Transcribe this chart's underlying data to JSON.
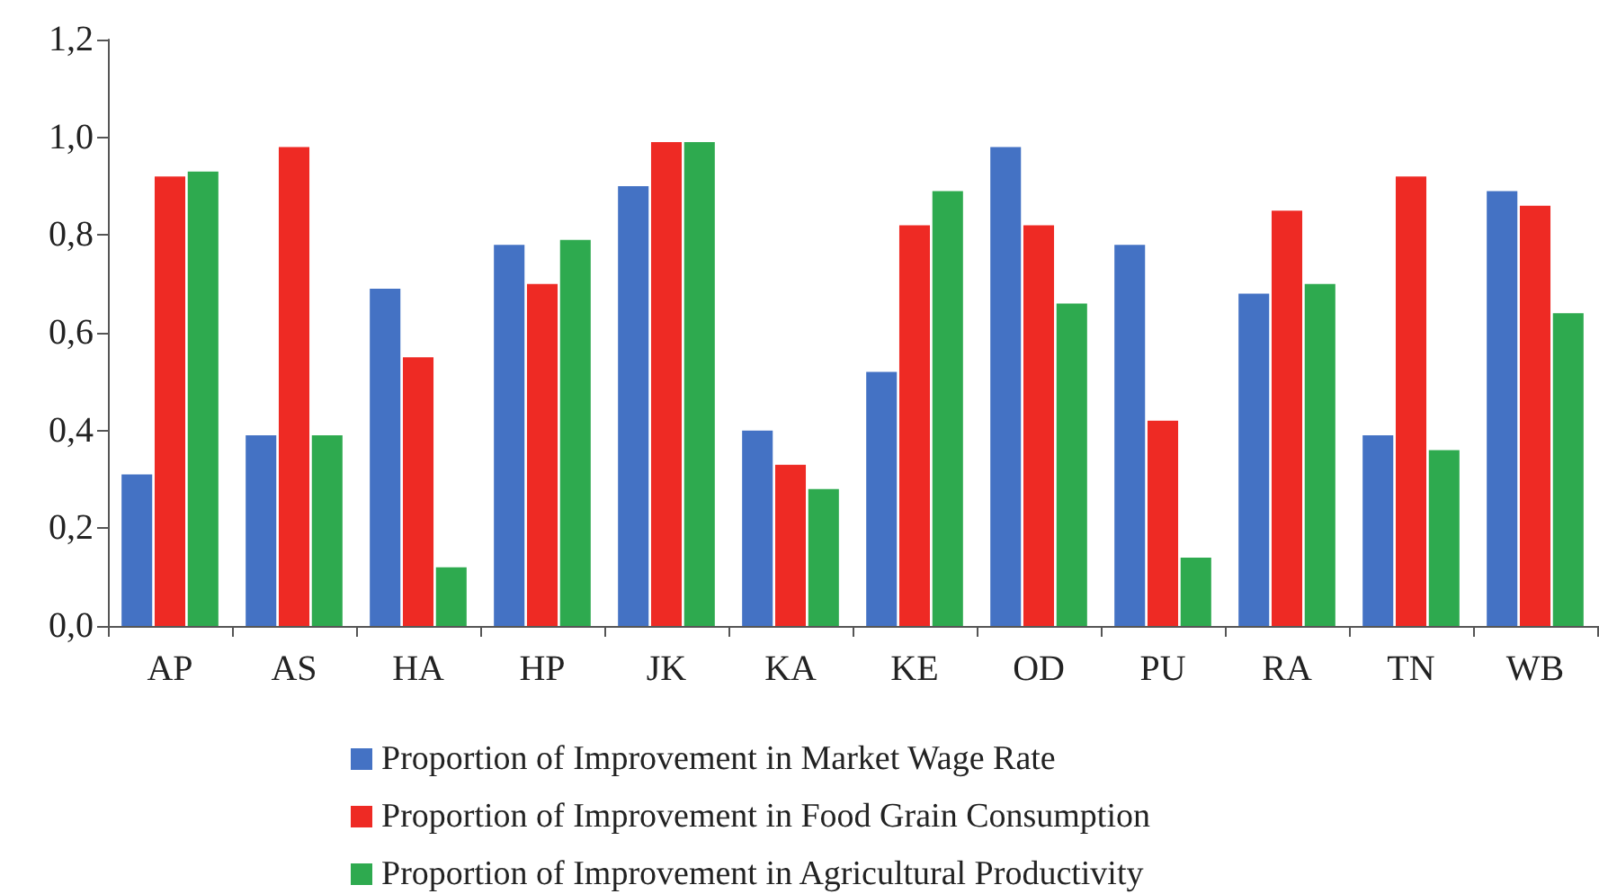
{
  "chart_data": {
    "type": "bar",
    "categories": [
      "AP",
      "AS",
      "HA",
      "HP",
      "JK",
      "KA",
      "KE",
      "OD",
      "PU",
      "RA",
      "TN",
      "WB"
    ],
    "series": [
      {
        "name": "Proportion of Improvement in Market Wage Rate",
        "color": "#4472c4",
        "values": [
          0.31,
          0.39,
          0.69,
          0.78,
          0.9,
          0.4,
          0.52,
          0.98,
          0.78,
          0.68,
          0.39,
          0.89
        ]
      },
      {
        "name": "Proportion of Improvement in Food Grain Consumption",
        "color": "#ee2a24",
        "values": [
          0.92,
          0.98,
          0.55,
          0.7,
          0.99,
          0.33,
          0.82,
          0.82,
          0.42,
          0.85,
          0.92,
          0.86
        ]
      },
      {
        "name": "Proportion of Improvement in Agricultural Productivity",
        "color": "#2eaa4f",
        "values": [
          0.93,
          0.39,
          0.12,
          0.79,
          0.99,
          0.28,
          0.89,
          0.66,
          0.14,
          0.7,
          0.36,
          0.64
        ]
      }
    ],
    "ylim": [
      0,
      1.2
    ],
    "yticks": [
      {
        "value": 0,
        "label": "0,0"
      },
      {
        "value": 0.2,
        "label": "0,2"
      },
      {
        "value": 0.4,
        "label": "0,4"
      },
      {
        "value": 0.6,
        "label": "0,6"
      },
      {
        "value": 0.8,
        "label": "0,8"
      },
      {
        "value": 1.0,
        "label": "1,0"
      },
      {
        "value": 1.2,
        "label": "1,2"
      }
    ],
    "grid": false,
    "legend": "bottom"
  }
}
